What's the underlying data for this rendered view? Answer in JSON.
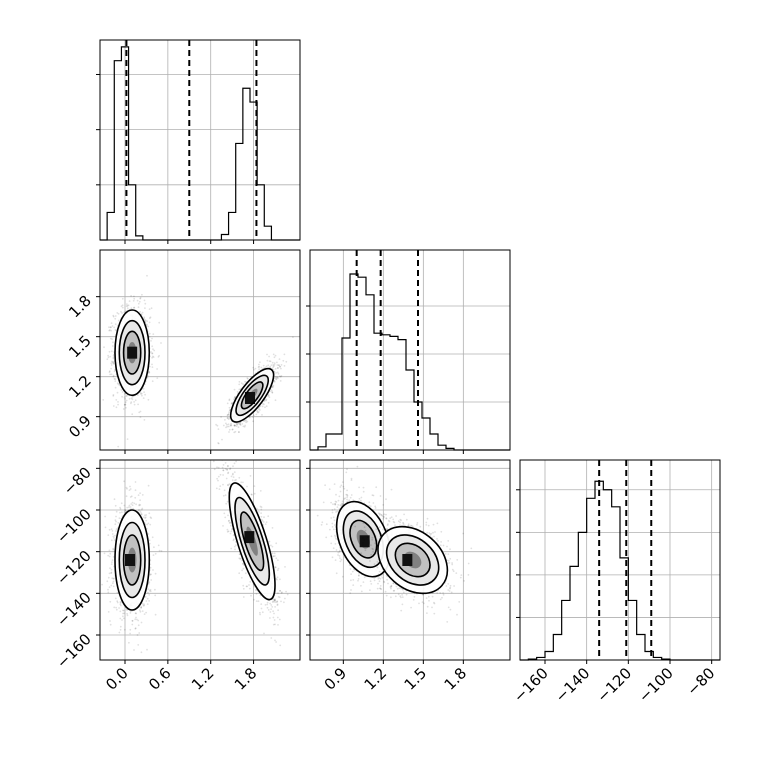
{
  "chart_data": {
    "type": "corner",
    "title": "",
    "grid": true,
    "parameters": [
      {
        "range": [
          -0.35,
          2.45
        ],
        "ticks": [
          0.0,
          0.6,
          1.2,
          1.8
        ],
        "tick_labels": [
          "0.0",
          "0.6",
          "1.2",
          "1.8"
        ],
        "quantile_lines": [
          0.02,
          0.9,
          1.84
        ],
        "histogram": {
          "bin_start": -0.35,
          "bin_width": 0.1,
          "counts": [
            0,
            2,
            13,
            14,
            4,
            0.3,
            0,
            0,
            0,
            0,
            0,
            0,
            0,
            0,
            0,
            0,
            0,
            0.4,
            2,
            7,
            11,
            10,
            4,
            1,
            0,
            0,
            0,
            0
          ],
          "ymax": 14.5,
          "yticks": [
            4,
            8,
            12
          ]
        }
      },
      {
        "range": [
          0.65,
          2.15
        ],
        "ticks": [
          0.9,
          1.2,
          1.5,
          1.8
        ],
        "tick_labels": [
          "0.9",
          "1.2",
          "1.5",
          "1.8"
        ],
        "quantile_lines": [
          1.0,
          1.18,
          1.46
        ],
        "histogram": {
          "bin_start": 0.65,
          "bin_width": 0.06,
          "counts": [
            0,
            0.2,
            1,
            1,
            7,
            11,
            10.8,
            9.7,
            7.3,
            7.2,
            7.1,
            6.9,
            5,
            3,
            2,
            1,
            0.3,
            0.1,
            0,
            0,
            0,
            0,
            0,
            0,
            0
          ],
          "ymax": 12.5,
          "yticks": [
            3,
            6,
            9
          ]
        }
      },
      {
        "range": [
          -172,
          -76
        ],
        "ticks": [
          -160,
          -140,
          -120,
          -100,
          -80
        ],
        "tick_labels": [
          "−160",
          "−140",
          "−120",
          "−100",
          "−80"
        ],
        "quantile_lines": [
          -134,
          -121,
          -109
        ],
        "histogram": {
          "bin_start": -172,
          "bin_width": 4,
          "counts": [
            0,
            0.1,
            0.3,
            1,
            3,
            7,
            11,
            15,
            19,
            21,
            20,
            18,
            12,
            7,
            3,
            1,
            0.3,
            0.1,
            0,
            0,
            0,
            0,
            0,
            0
          ],
          "ymax": 23.5,
          "yticks": [
            5,
            10,
            15,
            20
          ]
        }
      }
    ],
    "pairs": [
      {
        "row": 1,
        "col": 0,
        "clusters": [
          {
            "cx": 0.1,
            "cy": 1.38,
            "sx": 0.12,
            "sy": 0.16,
            "rho": 0.0,
            "n": 1400,
            "peak": [
              0.1,
              1.38
            ]
          },
          {
            "cx": 1.78,
            "cy": 1.06,
            "sx": 0.15,
            "sy": 0.1,
            "rho": 0.75,
            "n": 1400,
            "peak": [
              1.75,
              1.04
            ]
          }
        ]
      },
      {
        "row": 2,
        "col": 0,
        "clusters": [
          {
            "cx": 0.1,
            "cy": -124,
            "sx": 0.12,
            "sy": 12,
            "rho": 0.0,
            "n": 1400,
            "peak": [
              0.07,
              -124
            ]
          },
          {
            "cx": 1.78,
            "cy": -115,
            "sx": 0.16,
            "sy": 14,
            "rho": -0.75,
            "n": 1400,
            "peak": [
              1.74,
              -113
            ]
          }
        ]
      },
      {
        "row": 2,
        "col": 1,
        "clusters": [
          {
            "cx": 1.05,
            "cy": -114,
            "sx": 0.1,
            "sy": 9,
            "rho": -0.35,
            "n": 1500,
            "peak": [
              1.06,
              -115
            ]
          },
          {
            "cx": 1.42,
            "cy": -124,
            "sx": 0.13,
            "sy": 8,
            "rho": -0.3,
            "n": 1300,
            "peak": [
              1.38,
              -124
            ]
          }
        ]
      }
    ],
    "colors": {
      "points": "#000000",
      "line": "#000000",
      "grid": "#b0b0b0"
    }
  }
}
